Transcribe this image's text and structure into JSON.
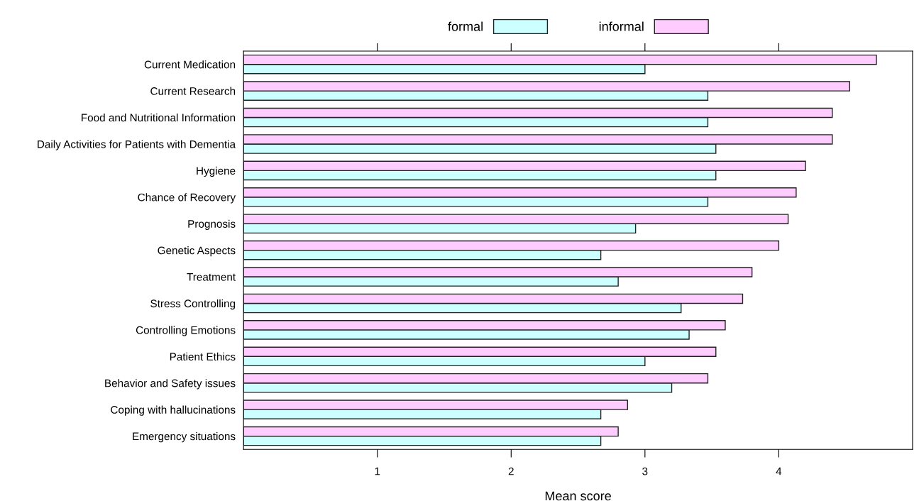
{
  "chart_data": {
    "type": "bar",
    "orientation": "horizontal",
    "xlabel": "Mean score",
    "categories": [
      "Current Medication",
      "Current Research",
      "Food and Nutritional Information",
      "Daily Activities for Patients with Dementia",
      "Hygiene",
      "Chance of Recovery",
      "Prognosis",
      "Genetic Aspects",
      "Treatment",
      "Stress Controlling",
      "Controlling Emotions",
      "Patient Ethics",
      "Behavior and Safety issues",
      "Coping with hallucinations",
      "Emergency situations"
    ],
    "series": [
      {
        "name": "formal",
        "color": "#ccffff",
        "values": [
          3.0,
          3.47,
          3.47,
          3.53,
          3.53,
          3.47,
          2.93,
          2.67,
          2.8,
          3.27,
          3.33,
          3.0,
          3.2,
          2.67,
          2.67
        ]
      },
      {
        "name": "informal",
        "color": "#ffccff",
        "values": [
          4.73,
          4.53,
          4.4,
          4.4,
          4.2,
          4.13,
          4.07,
          4.0,
          3.8,
          3.73,
          3.6,
          3.53,
          3.47,
          2.87,
          2.8
        ]
      }
    ],
    "xlim": [
      0,
      5
    ],
    "xticks": [
      1,
      2,
      3,
      4
    ],
    "grid": false,
    "legend": "top"
  }
}
